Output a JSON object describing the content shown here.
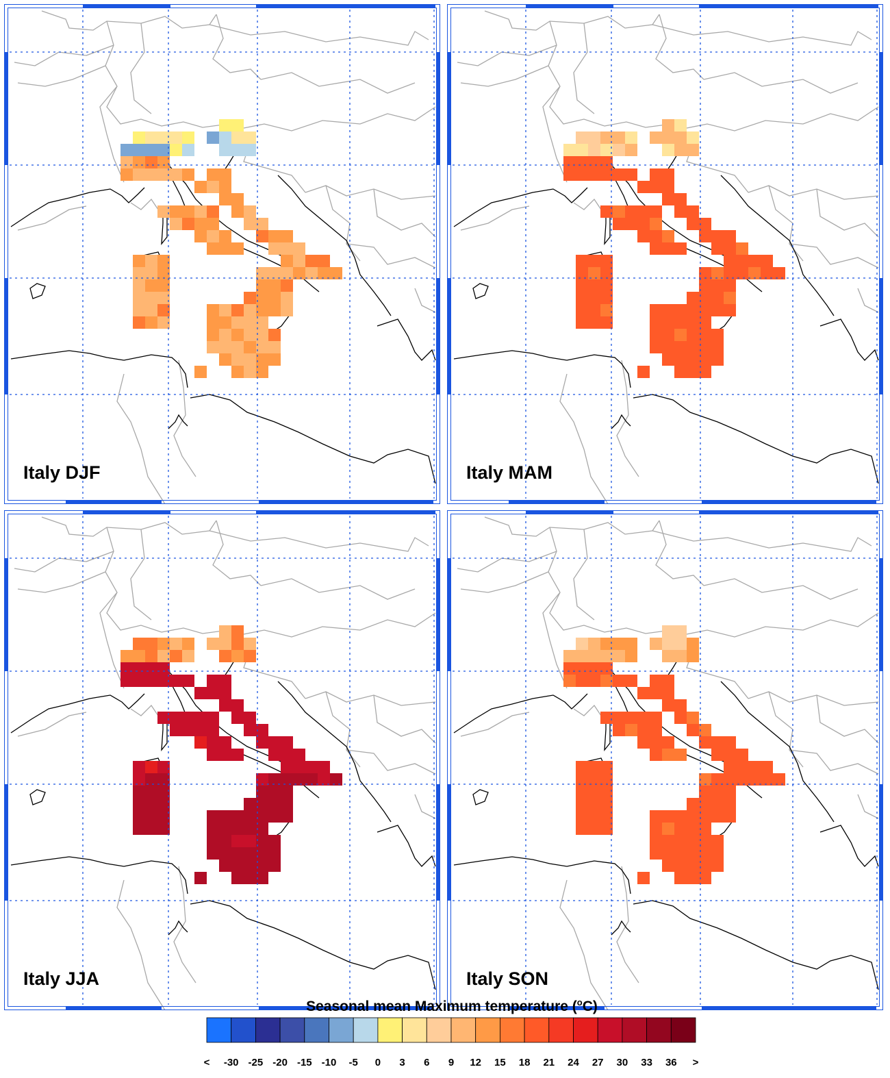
{
  "panels": [
    {
      "title": "Italy DJF",
      "season": "DJF"
    },
    {
      "title": "Italy MAM",
      "season": "MAM"
    },
    {
      "title": "Italy JJA",
      "season": "JJA"
    },
    {
      "title": "Italy SON",
      "season": "SON"
    }
  ],
  "legend": {
    "title_main": "Seasonal mean Maximum temperature (",
    "title_deg": "o",
    "title_unit": "C)",
    "tick_labels": [
      "<",
      "-30",
      "-25",
      "-20",
      "-15",
      "-10",
      "-5",
      "0",
      "3",
      "6",
      "9",
      "12",
      "15",
      "18",
      "21",
      "24",
      "27",
      "30",
      "33",
      "36",
      ">"
    ],
    "colors": [
      "#1a73ff",
      "#2251cc",
      "#2b2f93",
      "#3c4fa8",
      "#4a76bd",
      "#7aa6d4",
      "#b8d8ea",
      "#fff176",
      "#ffe49a",
      "#ffcd9a",
      "#ffb672",
      "#ff9a46",
      "#ff7a33",
      "#ff5a28",
      "#f53a24",
      "#e51e1e",
      "#c8102a",
      "#b00d26",
      "#93061f",
      "#7a0018"
    ]
  },
  "colors": {
    "frame": "#1a55e0",
    "grid": "#1a55e0",
    "borders": "#a8a8a8",
    "coast": "#000000"
  }
}
